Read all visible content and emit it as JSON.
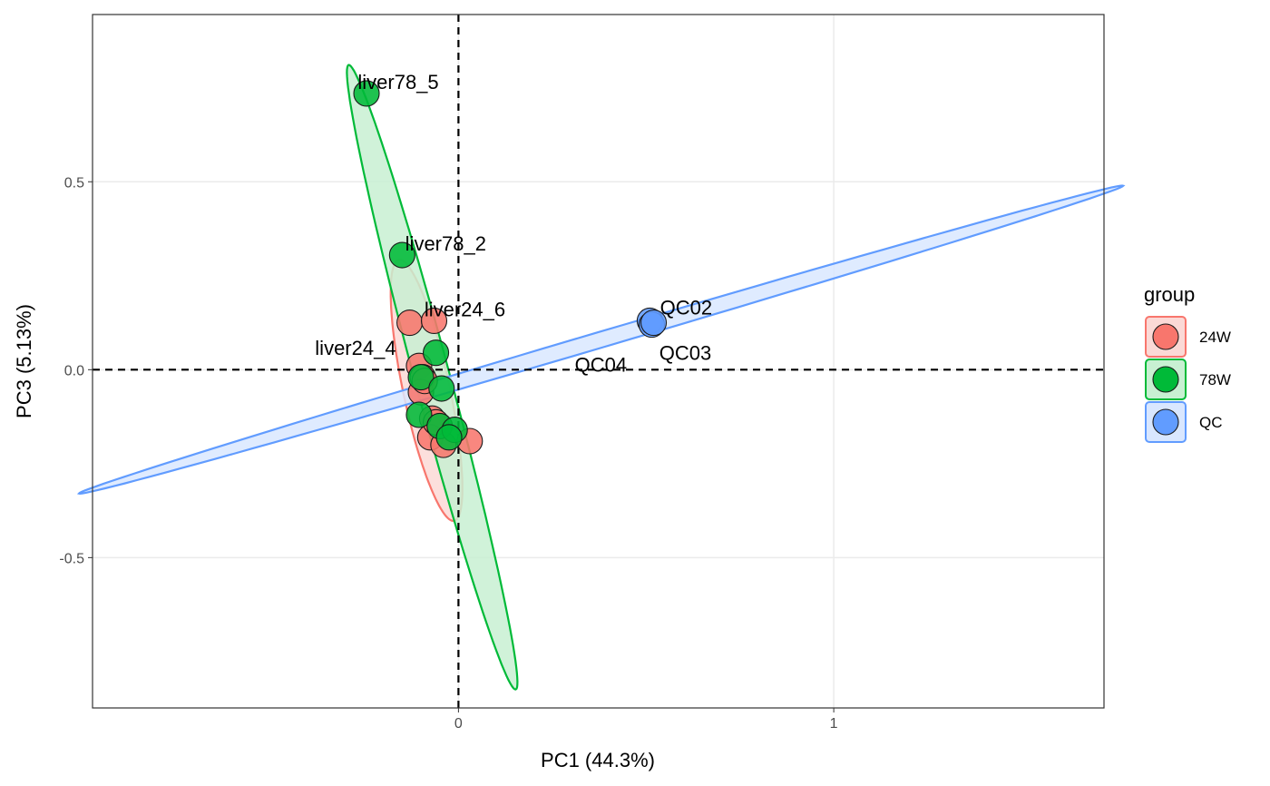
{
  "chart_data": {
    "type": "scatter",
    "xlabel": "PC1 (44.3%)",
    "ylabel": "PC3 (5.13%)",
    "xlim": [
      -0.975,
      1.72
    ],
    "ylim": [
      -0.9,
      0.945
    ],
    "xticks": [
      0,
      1
    ],
    "xtick_labels": [
      "0",
      "1"
    ],
    "yticks": [
      -0.5,
      0.0,
      0.5
    ],
    "ytick_labels": [
      "-0.5",
      "0.0",
      "0.5"
    ],
    "grid": true,
    "reference_lines": {
      "x": 0,
      "y": 0,
      "style": "dashed"
    },
    "legend": {
      "title": "group",
      "position": "right",
      "entries": [
        {
          "label": "24W",
          "fill": "#F8766D",
          "stroke": "#F8766D",
          "ellipse_fill": "#fbd9d6"
        },
        {
          "label": "78W",
          "fill": "#00BA38",
          "stroke": "#00BA38",
          "ellipse_fill": "#c8f0d2"
        },
        {
          "label": "QC",
          "fill": "#619CFF",
          "stroke": "#619CFF",
          "ellipse_fill": "#d9e7ff"
        }
      ]
    },
    "ellipses": [
      {
        "group": "24W",
        "cx": -0.085,
        "cy": -0.055,
        "a": 0.355,
        "b": 0.062,
        "angle_deg": -78
      },
      {
        "group": "78W",
        "cx": -0.07,
        "cy": -0.02,
        "a": 0.86,
        "b": 0.047,
        "angle_deg": -75
      },
      {
        "group": "QC",
        "cx": 0.38,
        "cy": 0.08,
        "a": 1.45,
        "b": 0.021,
        "angle_deg": 16.4
      }
    ],
    "series": [
      {
        "name": "24W",
        "points": [
          {
            "x": -0.13,
            "y": 0.125
          },
          {
            "x": -0.065,
            "y": 0.13
          },
          {
            "x": -0.105,
            "y": 0.01
          },
          {
            "x": -0.095,
            "y": -0.02
          },
          {
            "x": -0.1,
            "y": -0.06
          },
          {
            "x": -0.07,
            "y": -0.13
          },
          {
            "x": -0.075,
            "y": -0.18
          },
          {
            "x": -0.04,
            "y": -0.2
          },
          {
            "x": 0.03,
            "y": -0.19
          },
          {
            "x": -0.06,
            "y": -0.14
          },
          {
            "x": -0.09,
            "y": -0.03
          }
        ]
      },
      {
        "name": "78W",
        "points": [
          {
            "x": -0.245,
            "y": 0.735
          },
          {
            "x": -0.15,
            "y": 0.305
          },
          {
            "x": -0.06,
            "y": 0.045
          },
          {
            "x": -0.1,
            "y": -0.02
          },
          {
            "x": -0.045,
            "y": -0.05
          },
          {
            "x": -0.105,
            "y": -0.12
          },
          {
            "x": -0.05,
            "y": -0.15
          },
          {
            "x": -0.01,
            "y": -0.16
          },
          {
            "x": -0.025,
            "y": -0.18
          }
        ]
      },
      {
        "name": "QC",
        "points": [
          {
            "x": 0.51,
            "y": 0.13
          },
          {
            "x": 0.515,
            "y": 0.12
          },
          {
            "x": 0.52,
            "y": 0.125
          }
        ]
      }
    ],
    "annotations": [
      {
        "text": "liver78_5",
        "x": -0.245,
        "y": 0.735,
        "dx": 35,
        "dy": -12
      },
      {
        "text": "liver78_2",
        "x": -0.15,
        "y": 0.305,
        "dx": 48,
        "dy": -12
      },
      {
        "text": "liver24_6",
        "x": -0.065,
        "y": 0.13,
        "dx": 34,
        "dy": -12
      },
      {
        "text": "liver24_4",
        "x": -0.105,
        "y": 0.01,
        "dx": -70,
        "dy": -19
      },
      {
        "text": "QC02",
        "x": 0.51,
        "y": 0.13,
        "dx": 40,
        "dy": -14
      },
      {
        "text": "QC04",
        "x": 0.51,
        "y": 0.13,
        "dx": -54,
        "dy": 49
      },
      {
        "text": "QC03",
        "x": 0.52,
        "y": 0.125,
        "dx": 35,
        "dy": 34
      }
    ]
  }
}
